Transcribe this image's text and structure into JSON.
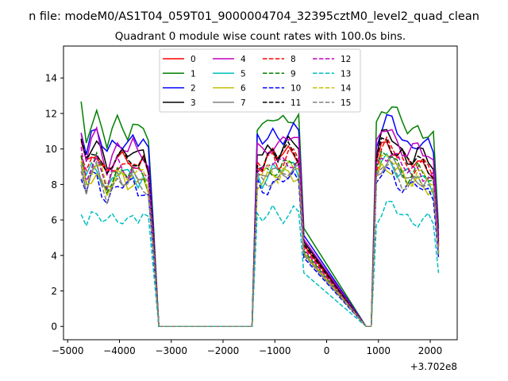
{
  "chart_data": {
    "type": "line",
    "suptitle": "n file: modeM0/AS1T04_059T01_9000004704_32395cztM0_level2_quad_clean",
    "title": "Quadrant 0 module wise count rates with 100.0s bins.",
    "xlabel": "",
    "ylabel": "",
    "x_offset_label": "+3.702e8",
    "xlim": [
      -5080,
      2520
    ],
    "ylim": [
      -0.75,
      15.8
    ],
    "xticks": [
      -5000,
      -4000,
      -3000,
      -2000,
      -1000,
      0,
      1000,
      2000
    ],
    "xtick_labels": [
      "−5000",
      "−4000",
      "−3000",
      "−2000",
      "−1000",
      "0",
      "1000",
      "2000"
    ],
    "yticks": [
      0,
      2,
      4,
      6,
      8,
      10,
      12,
      14
    ],
    "ytick_labels": [
      "0",
      "2",
      "4",
      "6",
      "8",
      "10",
      "12",
      "14"
    ],
    "grid": false,
    "legend": {
      "placement": "top-center",
      "ncol": 4
    },
    "x": [
      -4740,
      -4640,
      -4540,
      -4440,
      -4340,
      -4240,
      -4140,
      -4040,
      -3940,
      -3840,
      -3740,
      -3640,
      -3540,
      -3440,
      -3340,
      -3240,
      -1440,
      -1340,
      -1240,
      -1140,
      -1040,
      -940,
      -840,
      -740,
      -640,
      -540,
      -440,
      760,
      860,
      960,
      1060,
      1160,
      1260,
      1360,
      1460,
      1560,
      1660,
      1760,
      1860,
      1960,
      2060,
      2160
    ],
    "profile": [
      1.0,
      0.87,
      0.95,
      0.98,
      0.9,
      0.83,
      0.89,
      0.93,
      0.92,
      0.9,
      0.93,
      0.9,
      0.91,
      0.85,
      0.45,
      0.0,
      0.0,
      0.92,
      0.9,
      0.93,
      0.95,
      0.93,
      0.95,
      0.97,
      0.97,
      0.95,
      0.45,
      0.0,
      0.0,
      0.92,
      1.0,
      1.02,
      1.0,
      0.96,
      0.93,
      0.9,
      0.9,
      0.92,
      0.9,
      0.88,
      0.85,
      0.45
    ],
    "series": [
      {
        "name": "0",
        "color": "#ff0000",
        "style": "solid",
        "level": 10.2
      },
      {
        "name": "1",
        "color": "#008000",
        "style": "solid",
        "level": 12.3
      },
      {
        "name": "2",
        "color": "#0000ff",
        "style": "solid",
        "level": 11.4
      },
      {
        "name": "3",
        "color": "#000000",
        "style": "solid",
        "level": 10.6
      },
      {
        "name": "4",
        "color": "#bf00bf",
        "style": "solid",
        "level": 10.9
      },
      {
        "name": "5",
        "color": "#00bfbf",
        "style": "solid",
        "level": 9.3
      },
      {
        "name": "6",
        "color": "#bfbf00",
        "style": "solid",
        "level": 9.0
      },
      {
        "name": "7",
        "color": "#808080",
        "style": "solid",
        "level": 9.2
      },
      {
        "name": "8",
        "color": "#ff0000",
        "style": "dashed",
        "level": 10.0
      },
      {
        "name": "9",
        "color": "#008000",
        "style": "dashed",
        "level": 9.5
      },
      {
        "name": "10",
        "color": "#0000ff",
        "style": "dashed",
        "level": 8.6
      },
      {
        "name": "11",
        "color": "#000000",
        "style": "dashed",
        "level": 10.3
      },
      {
        "name": "12",
        "color": "#bf00bf",
        "style": "dashed",
        "level": 9.7
      },
      {
        "name": "13",
        "color": "#00bfbf",
        "style": "dashed",
        "level": 6.7
      },
      {
        "name": "14",
        "color": "#bfbf00",
        "style": "dashed",
        "level": 9.3
      },
      {
        "name": "15",
        "color": "#808080",
        "style": "dashed",
        "level": 8.9
      }
    ]
  }
}
